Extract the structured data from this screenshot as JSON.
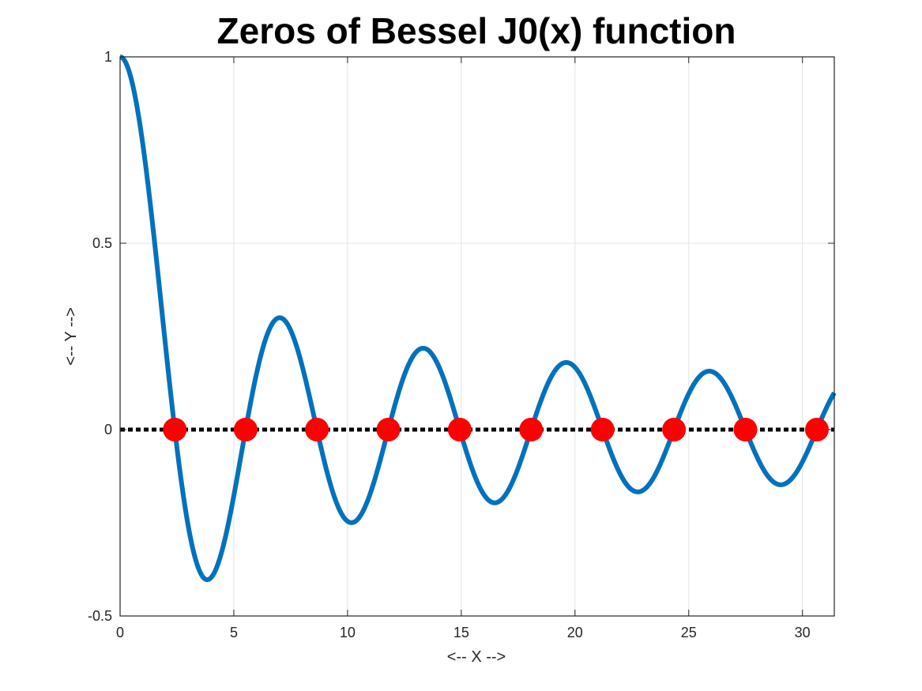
{
  "chart_data": {
    "type": "line",
    "title": "Zeros of Bessel J0(x) function",
    "xlabel": "<-- X -->",
    "ylabel": "<-- Y -->",
    "xlim": [
      0,
      31.4
    ],
    "ylim": [
      -0.5,
      1
    ],
    "x_ticks": [
      0,
      5,
      10,
      15,
      20,
      25,
      30
    ],
    "y_ticks": [
      -0.5,
      0,
      0.5,
      1
    ],
    "x_tick_labels": [
      "0",
      "5",
      "10",
      "15",
      "20",
      "25",
      "30"
    ],
    "y_tick_labels": [
      "-0.5",
      "0",
      "0.5",
      "1"
    ],
    "grid": true,
    "series": [
      {
        "function": "J0(x)",
        "x_range": [
          0,
          31.4
        ],
        "color": "#0072BD",
        "style": "solid"
      },
      {
        "function": "y = 0",
        "x_range": [
          0,
          31.4
        ],
        "color": "#000000",
        "style": "dotted"
      },
      {
        "x": [
          2.405,
          5.52,
          8.654,
          11.792,
          14.931,
          18.071,
          21.212,
          24.352,
          27.493,
          30.635
        ],
        "y": [
          0,
          0,
          0,
          0,
          0,
          0,
          0,
          0,
          0,
          0
        ],
        "color": "#FF0000",
        "style": "markers"
      }
    ]
  }
}
